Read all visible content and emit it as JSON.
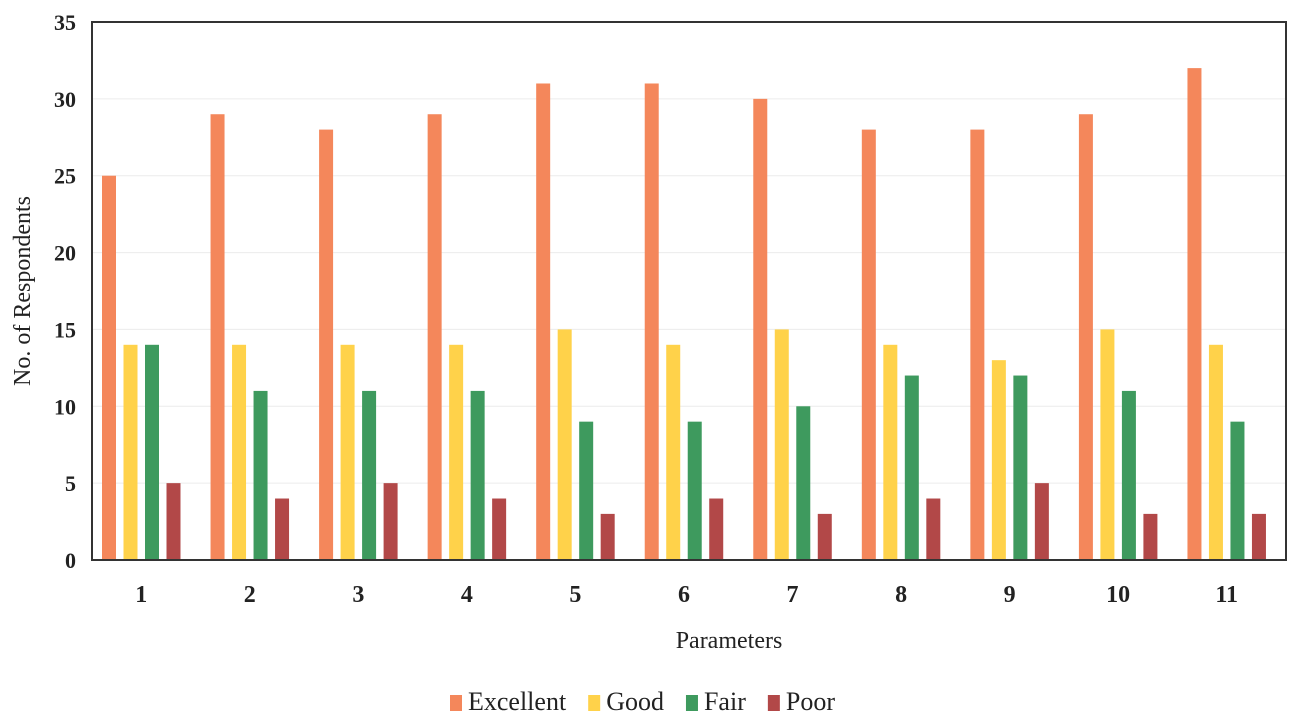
{
  "chart_data": {
    "type": "bar",
    "title": "",
    "xlabel": "Parameters",
    "ylabel": "No. of Respondents",
    "ylim": [
      0,
      35
    ],
    "yticks": [
      0,
      5,
      10,
      15,
      20,
      25,
      30,
      35
    ],
    "grid": true,
    "legend_position": "bottom",
    "categories": [
      "1",
      "2",
      "3",
      "4",
      "5",
      "6",
      "7",
      "8",
      "9",
      "10",
      "11"
    ],
    "series": [
      {
        "name": "Excellent",
        "color": "#F4875B",
        "values": [
          25,
          29,
          28,
          29,
          31,
          31,
          30,
          28,
          28,
          29,
          32
        ]
      },
      {
        "name": "Good",
        "color": "#FFD24A",
        "values": [
          14,
          14,
          14,
          14,
          15,
          14,
          15,
          14,
          13,
          15,
          14
        ]
      },
      {
        "name": "Fair",
        "color": "#3E9A5E",
        "values": [
          14,
          11,
          11,
          11,
          9,
          9,
          10,
          12,
          12,
          11,
          9
        ]
      },
      {
        "name": "Poor",
        "color": "#B24848",
        "values": [
          5,
          4,
          5,
          4,
          3,
          4,
          3,
          4,
          5,
          3,
          3
        ]
      }
    ]
  }
}
